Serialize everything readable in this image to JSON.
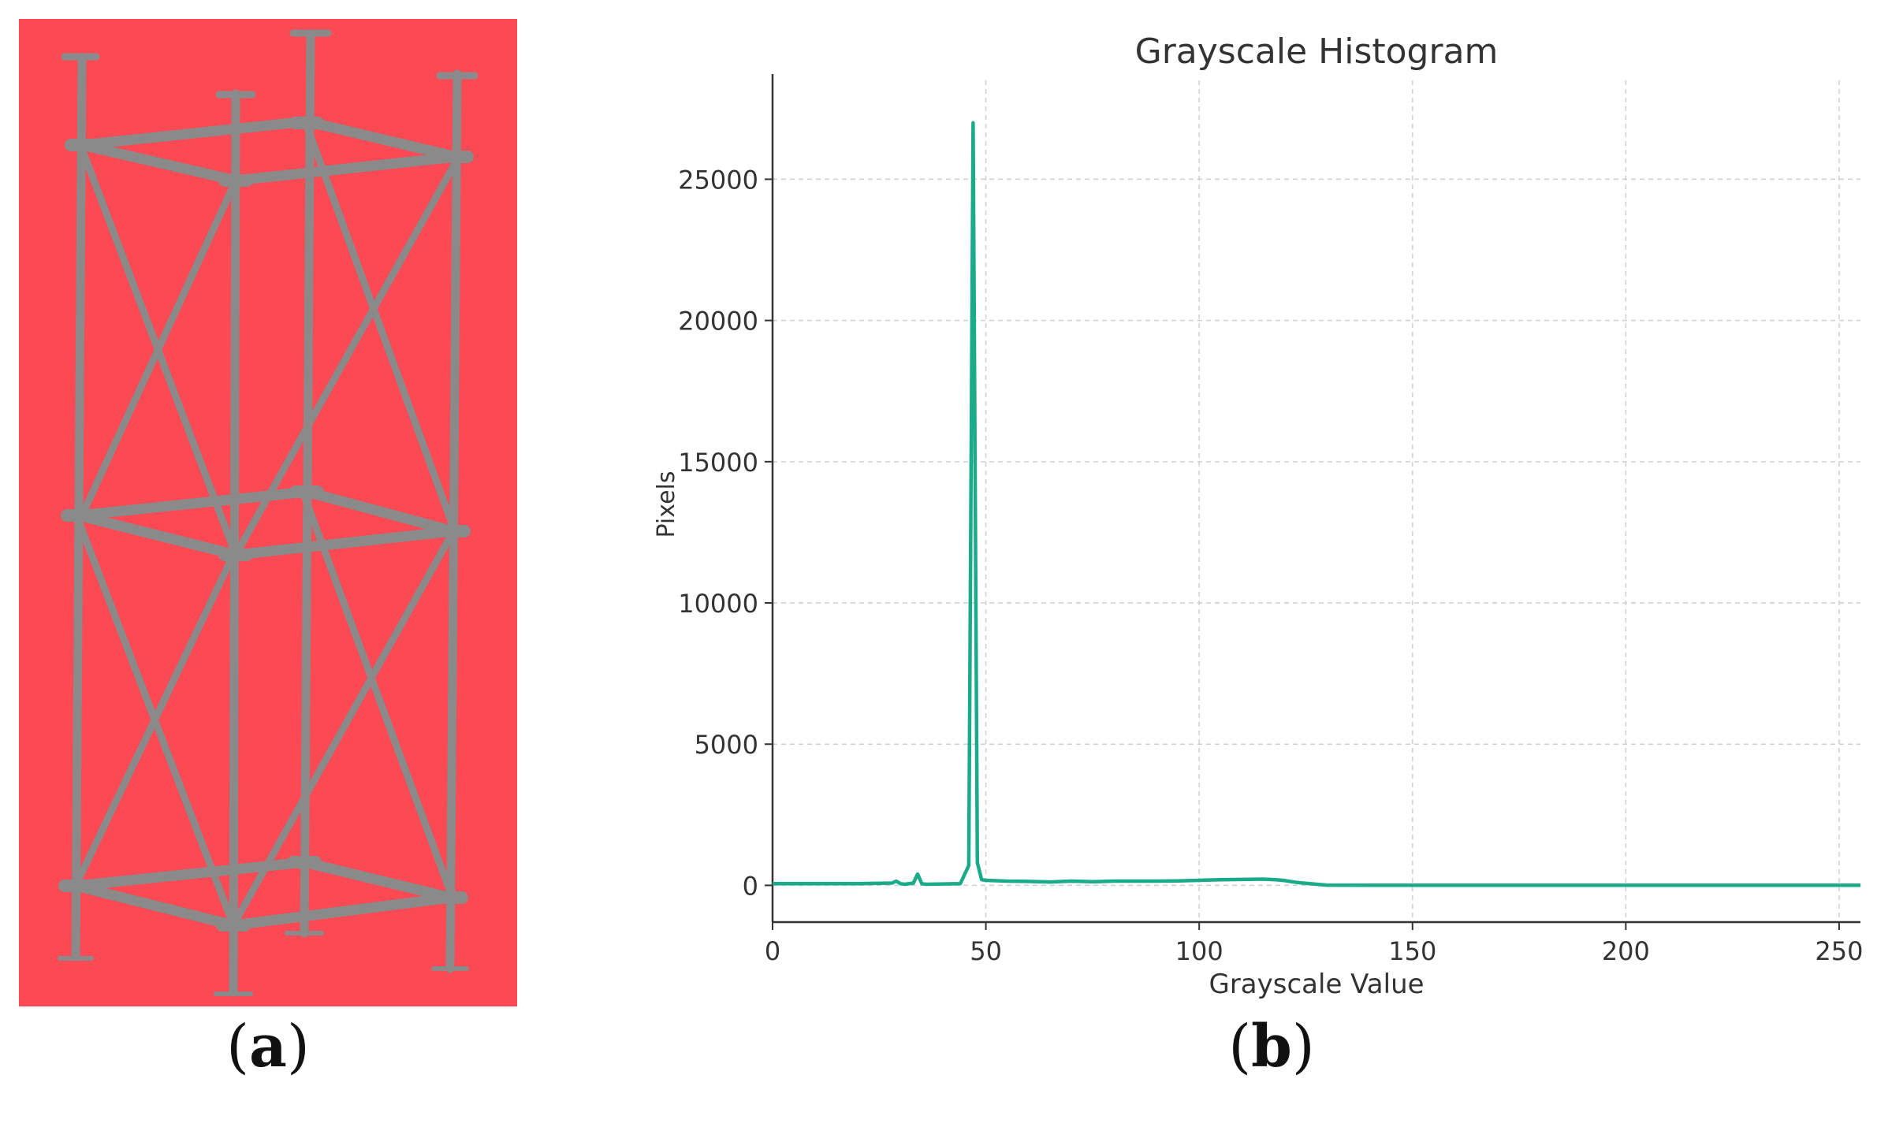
{
  "panels": {
    "a": {
      "label_open": "(",
      "label_letter": "a",
      "label_close": ")",
      "background_color": "#fc4a54",
      "structure_color": "#8a8a8a"
    },
    "b": {
      "label_open": "(",
      "label_letter": "b",
      "label_close": ")"
    }
  },
  "chart_data": {
    "type": "line",
    "title": "Grayscale Histogram",
    "xlabel": "Grayscale Value",
    "ylabel": "Pixels",
    "xlim": [
      0,
      255
    ],
    "ylim": [
      -1300,
      28500
    ],
    "xticks": [
      0,
      50,
      100,
      150,
      200,
      250
    ],
    "yticks": [
      0,
      5000,
      10000,
      15000,
      20000,
      25000
    ],
    "grid": true,
    "line_color": "#1aab8a",
    "series": [
      {
        "x": [
          0,
          20,
          28,
          29,
          30,
          31,
          33,
          34,
          35,
          36,
          44,
          46,
          47,
          48,
          49,
          50,
          55,
          60,
          65,
          70,
          75,
          80,
          85,
          90,
          95,
          100,
          105,
          110,
          115,
          118,
          120,
          123,
          126,
          128,
          130,
          140,
          160,
          200,
          255
        ],
        "y": [
          60,
          60,
          80,
          150,
          60,
          40,
          80,
          400,
          60,
          40,
          60,
          700,
          27000,
          800,
          200,
          180,
          150,
          140,
          120,
          150,
          130,
          150,
          150,
          150,
          160,
          180,
          200,
          210,
          220,
          200,
          170,
          100,
          60,
          30,
          10,
          5,
          5,
          5,
          5
        ]
      }
    ]
  }
}
